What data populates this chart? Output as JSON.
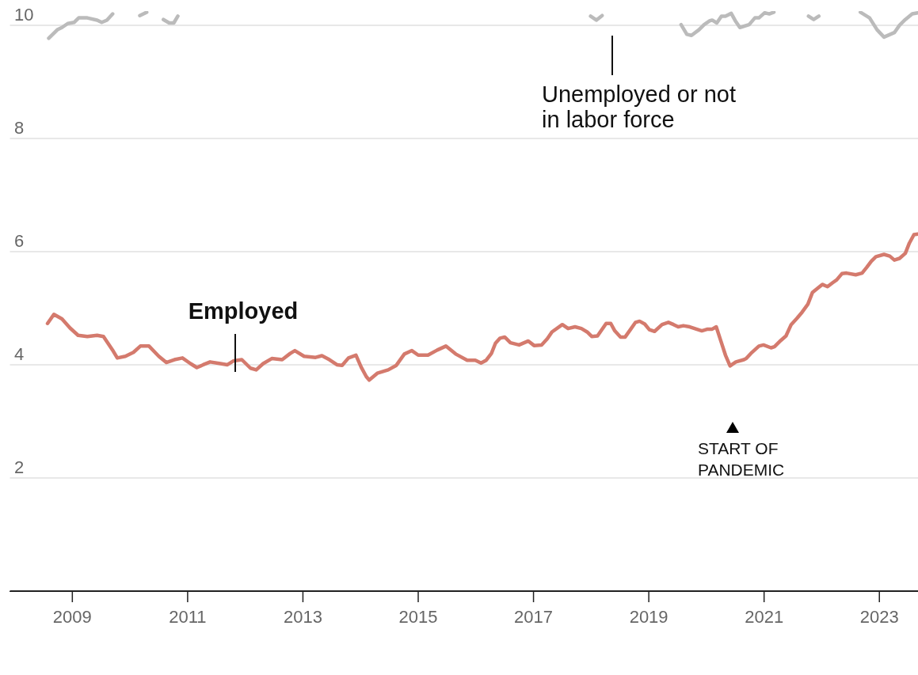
{
  "chart_data": {
    "type": "line",
    "xlim": [
      2007.91,
      2023.67
    ],
    "xticks": [
      2009,
      2011,
      2013,
      2015,
      2017,
      2019,
      2021,
      2023
    ],
    "ylim": [
      0,
      10.25
    ],
    "yticks": [
      {
        "value": 0,
        "label": null
      },
      2,
      4,
      6,
      8,
      10
    ],
    "grid": "y",
    "legend": false,
    "marker": "none",
    "line_style": "solid",
    "series": [
      {
        "name": "Unemployed or not in labor force",
        "color": "#bbbbbb",
        "x": [
          2008.59,
          2008.74,
          2008.82,
          2008.92,
          2009.03,
          2009.11,
          2009.26,
          2009.43,
          2009.51,
          2009.6,
          2009.7,
          2009.74,
          2009.89,
          2010.04,
          2010.17,
          2010.29,
          2010.39,
          2010.48,
          2010.58,
          2010.68,
          2010.76,
          2010.83,
          2010.92,
          2014,
          2017.9,
          2017.99,
          2018.09,
          2018.19,
          2018.27,
          2018.5,
          2018.67,
          2018.77,
          2018.89,
          2019.01,
          2019.14,
          2019.3,
          2019.45,
          2019.56,
          2019.66,
          2019.74,
          2019.87,
          2019.96,
          2020.06,
          2020.1,
          2020.18,
          2020.26,
          2020.33,
          2020.43,
          2020.5,
          2020.58,
          2020.74,
          2020.84,
          2020.91,
          2021.01,
          2021.09,
          2021.17,
          2021.24,
          2021.5,
          2021.71,
          2021.77,
          2021.86,
          2021.95,
          2022.04,
          2022.3,
          2022.57,
          2022.67,
          2022.83,
          2022.96,
          2023.08,
          2023.26,
          2023.35,
          2023.45,
          2023.57,
          2023.67
        ],
        "values": [
          9.77,
          9.92,
          9.96,
          10.03,
          10.05,
          10.13,
          10.13,
          10.09,
          10.05,
          10.09,
          10.2,
          null,
          null,
          null,
          10.17,
          10.23,
          null,
          null,
          10.1,
          10.04,
          10.04,
          10.16,
          null,
          null,
          null,
          10.16,
          10.09,
          10.17,
          null,
          null,
          null,
          null,
          null,
          null,
          null,
          null,
          null,
          10.01,
          9.84,
          9.82,
          9.92,
          10.01,
          10.08,
          10.09,
          10.04,
          10.16,
          10.16,
          10.21,
          10.08,
          9.96,
          10.01,
          10.13,
          10.13,
          10.22,
          10.2,
          10.23,
          null,
          null,
          null,
          10.16,
          10.1,
          10.16,
          null,
          null,
          null,
          10.23,
          10.13,
          9.92,
          9.79,
          9.87,
          10.0,
          10.1,
          10.2,
          10.22
        ]
      },
      {
        "name": "Employed",
        "color": "#d47a6d",
        "x": [
          2008.57,
          2008.68,
          2008.82,
          2008.96,
          2009.1,
          2009.26,
          2009.43,
          2009.54,
          2009.71,
          2009.78,
          2009.92,
          2010.06,
          2010.18,
          2010.33,
          2010.5,
          2010.63,
          2010.77,
          2010.91,
          2011.05,
          2011.16,
          2011.27,
          2011.39,
          2011.57,
          2011.69,
          2011.8,
          2011.94,
          2012.09,
          2012.19,
          2012.31,
          2012.46,
          2012.64,
          2012.78,
          2012.86,
          2013.02,
          2013.22,
          2013.33,
          2013.46,
          2013.59,
          2013.68,
          2013.79,
          2013.92,
          2014.01,
          2014.1,
          2014.15,
          2014.29,
          2014.48,
          2014.62,
          2014.76,
          2014.89,
          2015.0,
          2015.17,
          2015.33,
          2015.48,
          2015.65,
          2015.85,
          2015.99,
          2016.09,
          2016.18,
          2016.27,
          2016.34,
          2016.42,
          2016.5,
          2016.6,
          2016.75,
          2016.91,
          2017.01,
          2017.14,
          2017.24,
          2017.32,
          2017.5,
          2017.6,
          2017.72,
          2017.83,
          2017.93,
          2018.01,
          2018.11,
          2018.26,
          2018.34,
          2018.41,
          2018.51,
          2018.59,
          2018.68,
          2018.77,
          2018.84,
          2018.93,
          2019.01,
          2019.1,
          2019.23,
          2019.34,
          2019.43,
          2019.51,
          2019.6,
          2019.71,
          2019.92,
          2020.02,
          2020.1,
          2020.17,
          2020.25,
          2020.33,
          2020.41,
          2020.51,
          2020.65,
          2020.69,
          2020.77,
          2020.91,
          2020.99,
          2021.12,
          2021.18,
          2021.29,
          2021.38,
          2021.47,
          2021.57,
          2021.66,
          2021.76,
          2021.84,
          2022.01,
          2022.1,
          2022.19,
          2022.26,
          2022.35,
          2022.43,
          2022.59,
          2022.7,
          2022.78,
          2022.86,
          2022.94,
          2023.08,
          2023.18,
          2023.26,
          2023.35,
          2023.45,
          2023.52,
          2023.6,
          2023.67
        ],
        "values": [
          4.73,
          4.89,
          4.81,
          4.65,
          4.52,
          4.5,
          4.52,
          4.5,
          4.24,
          4.12,
          4.15,
          4.22,
          4.33,
          4.33,
          4.15,
          4.04,
          4.09,
          4.12,
          4.02,
          3.95,
          4.0,
          4.05,
          4.02,
          4.0,
          4.07,
          4.09,
          3.94,
          3.91,
          4.02,
          4.11,
          4.09,
          4.2,
          4.25,
          4.15,
          4.13,
          4.16,
          4.09,
          4.0,
          3.99,
          4.12,
          4.17,
          3.96,
          3.79,
          3.73,
          3.85,
          3.91,
          3.99,
          4.19,
          4.25,
          4.17,
          4.17,
          4.26,
          4.33,
          4.19,
          4.08,
          4.08,
          4.03,
          4.08,
          4.2,
          4.38,
          4.47,
          4.49,
          4.39,
          4.35,
          4.42,
          4.34,
          4.35,
          4.46,
          4.58,
          4.71,
          4.64,
          4.67,
          4.64,
          4.58,
          4.5,
          4.51,
          4.73,
          4.73,
          4.6,
          4.49,
          4.49,
          4.62,
          4.75,
          4.77,
          4.72,
          4.62,
          4.59,
          4.71,
          4.75,
          4.71,
          4.67,
          4.69,
          4.67,
          4.6,
          4.63,
          4.63,
          4.67,
          4.42,
          4.17,
          3.98,
          4.05,
          4.09,
          4.11,
          4.2,
          4.33,
          4.35,
          4.3,
          4.32,
          4.43,
          4.51,
          4.71,
          4.82,
          4.93,
          5.07,
          5.28,
          5.42,
          5.38,
          5.45,
          5.5,
          5.61,
          5.62,
          5.59,
          5.62,
          5.72,
          5.83,
          5.91,
          5.95,
          5.92,
          5.85,
          5.88,
          5.97,
          6.15,
          6.3,
          6.31
        ]
      }
    ],
    "annotations": [
      "START OF PANDEMIC"
    ]
  }
}
